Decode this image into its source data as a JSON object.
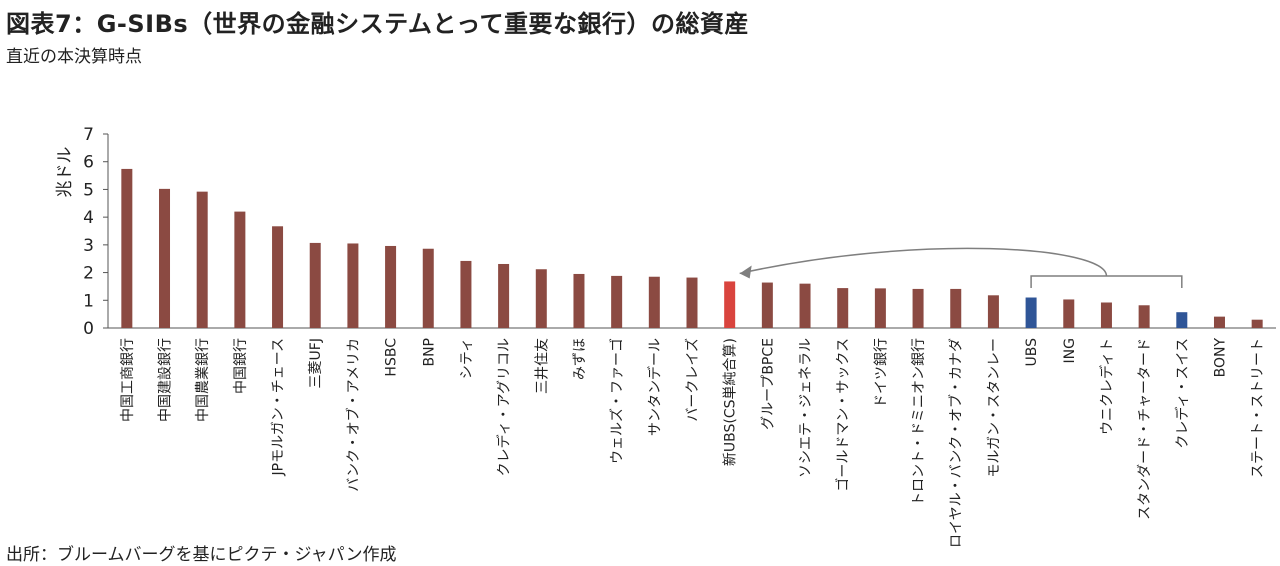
{
  "header": {
    "title": "図表7：G-SIBs（世界の金融システムとって重要な銀行）の総資産",
    "subtitle": "直近の本決算時点"
  },
  "footer": {
    "source": "出所：ブルームバーグを基にピクテ・ジャパン作成"
  },
  "colors": {
    "default_bar": "#8B4A42",
    "highlight_new": "#D9443E",
    "highlight_merge": "#2F5597",
    "arrow": "#7F7F7F",
    "axis": "#555555"
  },
  "chart_data": {
    "type": "bar",
    "title": "図表7：G-SIBs（世界の金融システムとって重要な銀行）の総資産",
    "subtitle": "直近の本決算時点",
    "ylabel": "兆ドル",
    "xlabel": "",
    "ylim": [
      0,
      7
    ],
    "yticks": [
      0,
      1,
      2,
      3,
      4,
      5,
      6,
      7
    ],
    "grid": false,
    "legend": "none",
    "categories": [
      "中国工商銀行",
      "中国建設銀行",
      "中国農業銀行",
      "中国銀行",
      "JPモルガン・チェース",
      "三菱UFJ",
      "バンク・オブ・アメリカ",
      "HSBC",
      "BNP",
      "シティ",
      "クレディ・アグリコル",
      "三井住友",
      "みずほ",
      "ウェルズ・ファーゴ",
      "サンタンデール",
      "バークレイズ",
      "新UBS(CS単純合算)",
      "グループBPCE",
      "ソシエテ・ジェネラル",
      "ゴールドマン・サックス",
      "ドイツ銀行",
      "トロント・ドミニオン銀行",
      "ロイヤル・バンク・オブ・カナダ",
      "モルガン・スタンレー",
      "UBS",
      "ING",
      "ウニクレディト",
      "スタンダード・チャータード",
      "クレディ・スイス",
      "BONY",
      "ステート・ストリート"
    ],
    "values": [
      5.74,
      5.02,
      4.92,
      4.2,
      3.67,
      3.07,
      3.05,
      2.96,
      2.86,
      2.42,
      2.31,
      2.12,
      1.95,
      1.88,
      1.85,
      1.82,
      1.68,
      1.64,
      1.6,
      1.44,
      1.43,
      1.41,
      1.41,
      1.18,
      1.1,
      1.03,
      0.92,
      0.82,
      0.57,
      0.41,
      0.3
    ],
    "highlight": {
      "new": [
        16
      ],
      "merge_sources": [
        24,
        28
      ]
    },
    "annotation": {
      "type": "bracket-arrow",
      "from_indices": [
        24,
        28
      ],
      "to_index": 16
    }
  }
}
